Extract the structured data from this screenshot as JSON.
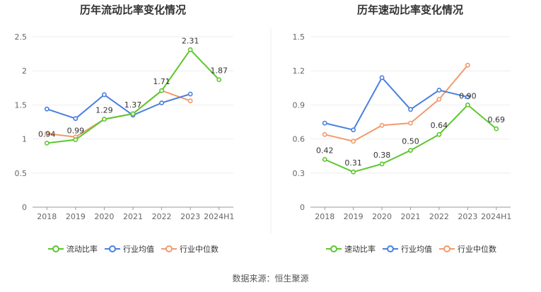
{
  "source_label": "数据来源：恒生聚源",
  "chart_data": [
    {
      "type": "line",
      "title": "历年流动比率变化情况",
      "categories": [
        "2018",
        "2019",
        "2020",
        "2021",
        "2022",
        "2023",
        "2024H1"
      ],
      "ylim": [
        0,
        2.5
      ],
      "yticks": [
        "0",
        "0.5",
        "1",
        "1.5",
        "2",
        "2.5"
      ],
      "grid": true,
      "legend_position": "bottom",
      "series": [
        {
          "name": "流动比率",
          "color": "#5cc72d",
          "labeled": true,
          "values": [
            0.94,
            0.99,
            1.29,
            1.37,
            1.71,
            2.31,
            1.87
          ],
          "labels": [
            "0.94",
            "0.99",
            "1.29",
            "1.37",
            "1.71",
            "2.31",
            "1.87"
          ]
        },
        {
          "name": "行业均值",
          "color": "#4a7fe0",
          "labeled": false,
          "values": [
            1.44,
            1.3,
            1.65,
            1.35,
            1.53,
            1.66,
            null
          ]
        },
        {
          "name": "行业中位数",
          "color": "#f29a6b",
          "labeled": false,
          "values": [
            1.08,
            1.03,
            1.29,
            1.37,
            1.71,
            1.56,
            null
          ]
        }
      ]
    },
    {
      "type": "line",
      "title": "历年速动比率变化情况",
      "categories": [
        "2018",
        "2019",
        "2020",
        "2021",
        "2022",
        "2023",
        "2024H1"
      ],
      "ylim": [
        0,
        1.5
      ],
      "yticks": [
        "0",
        "0.3",
        "0.6",
        "0.9",
        "1.2",
        "1.5"
      ],
      "grid": true,
      "legend_position": "bottom",
      "series": [
        {
          "name": "速动比率",
          "color": "#5cc72d",
          "labeled": true,
          "values": [
            0.42,
            0.31,
            0.38,
            0.5,
            0.64,
            0.9,
            0.69
          ],
          "labels": [
            "0.42",
            "0.31",
            "0.38",
            "0.50",
            "0.64",
            "0.90",
            "0.69"
          ]
        },
        {
          "name": "行业均值",
          "color": "#4a7fe0",
          "labeled": false,
          "values": [
            0.74,
            0.68,
            1.14,
            0.86,
            1.03,
            0.97,
            null
          ]
        },
        {
          "name": "行业中位数",
          "color": "#f29a6b",
          "labeled": false,
          "values": [
            0.64,
            0.58,
            0.72,
            0.74,
            0.95,
            1.25,
            null
          ]
        }
      ]
    }
  ]
}
